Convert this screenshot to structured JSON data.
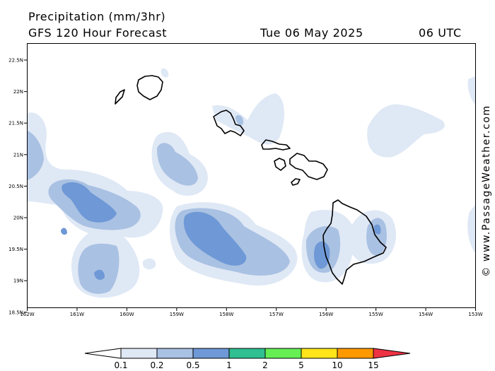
{
  "header": {
    "title": "Precipitation (mm/3hr)",
    "subtitle": "GFS 120 Hour Forecast",
    "date": "Tue 06 May 2025",
    "time": "06 UTC"
  },
  "credit": "© www.PassageWeather.com",
  "map": {
    "region": "Hawaiian Islands",
    "lon_range": [
      -162,
      -153
    ],
    "lat_range": [
      18.2,
      22.8
    ],
    "lat_ticks": [
      "22.5N",
      "22N",
      "21.5N",
      "21N",
      "20.5N",
      "20N",
      "19.5N",
      "19N",
      "18.5N"
    ],
    "lon_ticks": [
      "162W",
      "161W",
      "160W",
      "159W",
      "158W",
      "157W",
      "156W",
      "155W",
      "154W",
      "153W"
    ],
    "islands": [
      "Niihau",
      "Kauai",
      "Oahu",
      "Molokai",
      "Lanai",
      "Maui",
      "Kahoolawe",
      "Hawaii"
    ]
  },
  "legend": {
    "levels": [
      "0.1",
      "0.2",
      "0.5",
      "1",
      "2",
      "5",
      "10",
      "15"
    ],
    "colors": [
      "#dfe8f5",
      "#a9c1e2",
      "#6e98d6",
      "#2fbf91",
      "#66ee55",
      "#ffe51a",
      "#ff9900",
      "#ee3344"
    ]
  }
}
